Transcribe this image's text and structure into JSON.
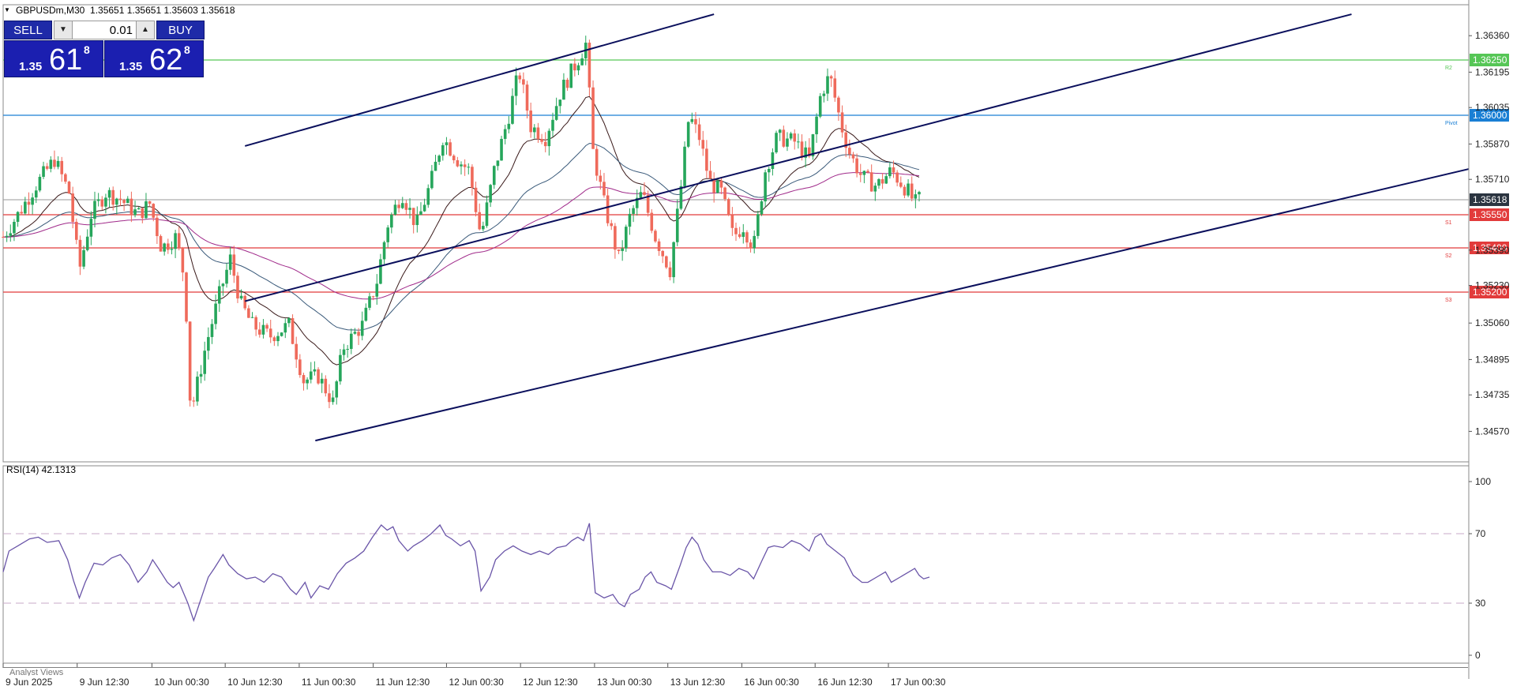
{
  "header": {
    "symbol_text": "GBPUSDm,M30",
    "ohlc_text": "1.35651 1.35651 1.35603 1.35618",
    "collapse_icon": "triangle-down-icon"
  },
  "trade_panel": {
    "sell_label": "SELL",
    "buy_label": "BUY",
    "lot_value": "0.01",
    "down_icon": "arrow-down-icon",
    "up_icon": "arrow-up-icon",
    "sell_quote": {
      "small": "1.35",
      "big": "61",
      "sup": "8"
    },
    "buy_quote": {
      "small": "1.35",
      "big": "62",
      "sup": "8"
    }
  },
  "rsi_panel": {
    "label": "RSI(14) 42.1313"
  },
  "analyst": {
    "label": "Analyst Views"
  },
  "chart_data": [
    {
      "type": "candlestick",
      "ylim": [
        1.3445,
        1.3645
      ],
      "y_tick_labels": [
        "1.36360",
        "1.36195",
        "1.36035",
        "1.35870",
        "1.35710",
        "1.35390",
        "1.35230",
        "1.35060",
        "1.34895",
        "1.34735",
        "1.34570"
      ],
      "price_badges": [
        {
          "label": "1.36250",
          "value": 1.3625,
          "color": "#56c656",
          "tag": "R2"
        },
        {
          "label": "1.36000",
          "value": 1.36,
          "color": "#1a7fd4",
          "tag": "Pivot"
        },
        {
          "label": "1.35618",
          "value": 1.35618,
          "color": "#2b3440",
          "tag": ""
        },
        {
          "label": "1.35550",
          "value": 1.3555,
          "color": "#e23b3b",
          "tag": "S1"
        },
        {
          "label": "1.35400",
          "value": 1.354,
          "color": "#e23b3b",
          "tag": "S2"
        },
        {
          "label": "1.35200",
          "value": 1.352,
          "color": "#e23b3b",
          "tag": "S3"
        }
      ],
      "x_labels": [
        "9 Jun 2025",
        "9 Jun 12:30",
        "10 Jun 00:30",
        "10 Jun 12:30",
        "11 Jun 00:30",
        "11 Jun 12:30",
        "12 Jun 00:30",
        "12 Jun 12:30",
        "13 Jun 00:30",
        "13 Jun 12:30",
        "16 Jun 00:30",
        "16 Jun 12:30",
        "17 Jun 00:30"
      ],
      "x_domain": [
        0,
        1000
      ],
      "x_label_positions": [
        0,
        50.5,
        101.5,
        151.5,
        202,
        252.5,
        302.5,
        353,
        403.5,
        453.5,
        504,
        554,
        604
      ],
      "colors": {
        "up": "#26a65b",
        "down": "#ef6a5b",
        "channel": "#0a0f5c",
        "ma_fast": "#3a1a1a",
        "ma_mid": "#3a5a7a",
        "ma_slow": "#a02a8a"
      },
      "channel_lines": [
        {
          "x": [
            165,
            485
          ],
          "y": [
            1.35861,
            1.36457
          ]
        },
        {
          "x": [
            165,
            920
          ],
          "y": [
            1.35159,
            1.36457
          ]
        },
        {
          "x": [
            213,
            1000
          ],
          "y": [
            1.34528,
            1.35757
          ]
        }
      ],
      "path_anchors": [
        [
          0,
          1.3545
        ],
        [
          10,
          1.3555
        ],
        [
          22,
          1.3568
        ],
        [
          35,
          1.358
        ],
        [
          45,
          1.3565
        ],
        [
          52,
          1.353
        ],
        [
          60,
          1.3555
        ],
        [
          70,
          1.3565
        ],
        [
          80,
          1.3562
        ],
        [
          92,
          1.3555
        ],
        [
          100,
          1.356
        ],
        [
          108,
          1.354
        ],
        [
          118,
          1.3545
        ],
        [
          124,
          1.3525
        ],
        [
          128,
          1.3465
        ],
        [
          138,
          1.3495
        ],
        [
          148,
          1.352
        ],
        [
          155,
          1.3535
        ],
        [
          162,
          1.3515
        ],
        [
          170,
          1.3505
        ],
        [
          182,
          1.35
        ],
        [
          195,
          1.3505
        ],
        [
          205,
          1.348
        ],
        [
          215,
          1.3482
        ],
        [
          225,
          1.347
        ],
        [
          232,
          1.3495
        ],
        [
          245,
          1.3505
        ],
        [
          255,
          1.3525
        ],
        [
          262,
          1.355
        ],
        [
          272,
          1.3565
        ],
        [
          282,
          1.355
        ],
        [
          292,
          1.357
        ],
        [
          300,
          1.359
        ],
        [
          310,
          1.358
        ],
        [
          318,
          1.3575
        ],
        [
          326,
          1.3545
        ],
        [
          335,
          1.3575
        ],
        [
          345,
          1.36
        ],
        [
          352,
          1.362
        ],
        [
          360,
          1.3595
        ],
        [
          370,
          1.359
        ],
        [
          380,
          1.361
        ],
        [
          392,
          1.3625
        ],
        [
          398,
          1.3633
        ],
        [
          402,
          1.3585
        ],
        [
          410,
          1.356
        ],
        [
          420,
          1.3535
        ],
        [
          428,
          1.3555
        ],
        [
          436,
          1.3565
        ],
        [
          445,
          1.3545
        ],
        [
          455,
          1.353
        ],
        [
          462,
          1.3565
        ],
        [
          468,
          1.36
        ],
        [
          475,
          1.359
        ],
        [
          482,
          1.357
        ],
        [
          490,
          1.3565
        ],
        [
          498,
          1.3545
        ],
        [
          505,
          1.355
        ],
        [
          512,
          1.354
        ],
        [
          520,
          1.3575
        ],
        [
          528,
          1.359
        ],
        [
          540,
          1.3588
        ],
        [
          550,
          1.358
        ],
        [
          558,
          1.361
        ],
        [
          564,
          1.3618
        ],
        [
          572,
          1.3595
        ],
        [
          578,
          1.3582
        ],
        [
          586,
          1.3572
        ],
        [
          596,
          1.3568
        ],
        [
          606,
          1.3575
        ],
        [
          612,
          1.357
        ],
        [
          618,
          1.3565
        ],
        [
          622,
          1.356
        ],
        [
          625,
          1.3562
        ]
      ]
    },
    {
      "type": "line",
      "title": "RSI(14) 42.1313",
      "ylim": [
        0,
        100
      ],
      "y_tick_labels": [
        "100",
        "70",
        "30",
        "0"
      ],
      "levels": [
        70,
        30
      ],
      "x_domain": [
        0,
        1000
      ],
      "series": [
        {
          "color": "#6a55a8",
          "values": [
            [
              0,
              48
            ],
            [
              4,
              60
            ],
            [
              10,
              63
            ],
            [
              18,
              67
            ],
            [
              24,
              68
            ],
            [
              30,
              65
            ],
            [
              38,
              66
            ],
            [
              44,
              55
            ],
            [
              48,
              43
            ],
            [
              52,
              33
            ],
            [
              56,
              42
            ],
            [
              62,
              53
            ],
            [
              68,
              52
            ],
            [
              74,
              56
            ],
            [
              80,
              58
            ],
            [
              86,
              52
            ],
            [
              92,
              42
            ],
            [
              98,
              48
            ],
            [
              102,
              55
            ],
            [
              106,
              50
            ],
            [
              112,
              42
            ],
            [
              116,
              39
            ],
            [
              120,
              42
            ],
            [
              126,
              30
            ],
            [
              130,
              20
            ],
            [
              134,
              30
            ],
            [
              140,
              45
            ],
            [
              144,
              50
            ],
            [
              150,
              58
            ],
            [
              154,
              52
            ],
            [
              160,
              47
            ],
            [
              166,
              44
            ],
            [
              172,
              45
            ],
            [
              178,
              42
            ],
            [
              184,
              47
            ],
            [
              190,
              45
            ],
            [
              196,
              38
            ],
            [
              200,
              35
            ],
            [
              206,
              42
            ],
            [
              210,
              33
            ],
            [
              216,
              40
            ],
            [
              222,
              38
            ],
            [
              228,
              47
            ],
            [
              234,
              53
            ],
            [
              240,
              56
            ],
            [
              246,
              60
            ],
            [
              252,
              68
            ],
            [
              258,
              75
            ],
            [
              262,
              72
            ],
            [
              266,
              74
            ],
            [
              270,
              66
            ],
            [
              276,
              60
            ],
            [
              280,
              63
            ],
            [
              286,
              66
            ],
            [
              292,
              70
            ],
            [
              298,
              75
            ],
            [
              302,
              69
            ],
            [
              306,
              67
            ],
            [
              312,
              63
            ],
            [
              318,
              66
            ],
            [
              322,
              60
            ],
            [
              326,
              37
            ],
            [
              332,
              45
            ],
            [
              336,
              55
            ],
            [
              342,
              60
            ],
            [
              348,
              63
            ],
            [
              354,
              60
            ],
            [
              360,
              58
            ],
            [
              366,
              60
            ],
            [
              372,
              58
            ],
            [
              378,
              62
            ],
            [
              384,
              63
            ],
            [
              388,
              66
            ],
            [
              392,
              68
            ],
            [
              396,
              66
            ],
            [
              400,
              76
            ],
            [
              404,
              36
            ],
            [
              410,
              33
            ],
            [
              416,
              35
            ],
            [
              420,
              30
            ],
            [
              424,
              28
            ],
            [
              428,
              35
            ],
            [
              434,
              38
            ],
            [
              438,
              45
            ],
            [
              442,
              48
            ],
            [
              446,
              42
            ],
            [
              452,
              40
            ],
            [
              456,
              38
            ],
            [
              462,
              52
            ],
            [
              466,
              62
            ],
            [
              470,
              68
            ],
            [
              474,
              64
            ],
            [
              478,
              55
            ],
            [
              484,
              48
            ],
            [
              490,
              48
            ],
            [
              496,
              46
            ],
            [
              502,
              50
            ],
            [
              508,
              48
            ],
            [
              512,
              44
            ],
            [
              518,
              55
            ],
            [
              522,
              62
            ],
            [
              526,
              63
            ],
            [
              532,
              62
            ],
            [
              538,
              66
            ],
            [
              544,
              64
            ],
            [
              550,
              60
            ],
            [
              554,
              68
            ],
            [
              558,
              70
            ],
            [
              562,
              64
            ],
            [
              568,
              60
            ],
            [
              574,
              56
            ],
            [
              580,
              46
            ],
            [
              586,
              42
            ],
            [
              590,
              42
            ],
            [
              596,
              45
            ],
            [
              602,
              48
            ],
            [
              606,
              42
            ],
            [
              612,
              45
            ],
            [
              618,
              48
            ],
            [
              622,
              50
            ],
            [
              625,
              46
            ],
            [
              628,
              44
            ],
            [
              632,
              45
            ]
          ]
        }
      ]
    }
  ]
}
